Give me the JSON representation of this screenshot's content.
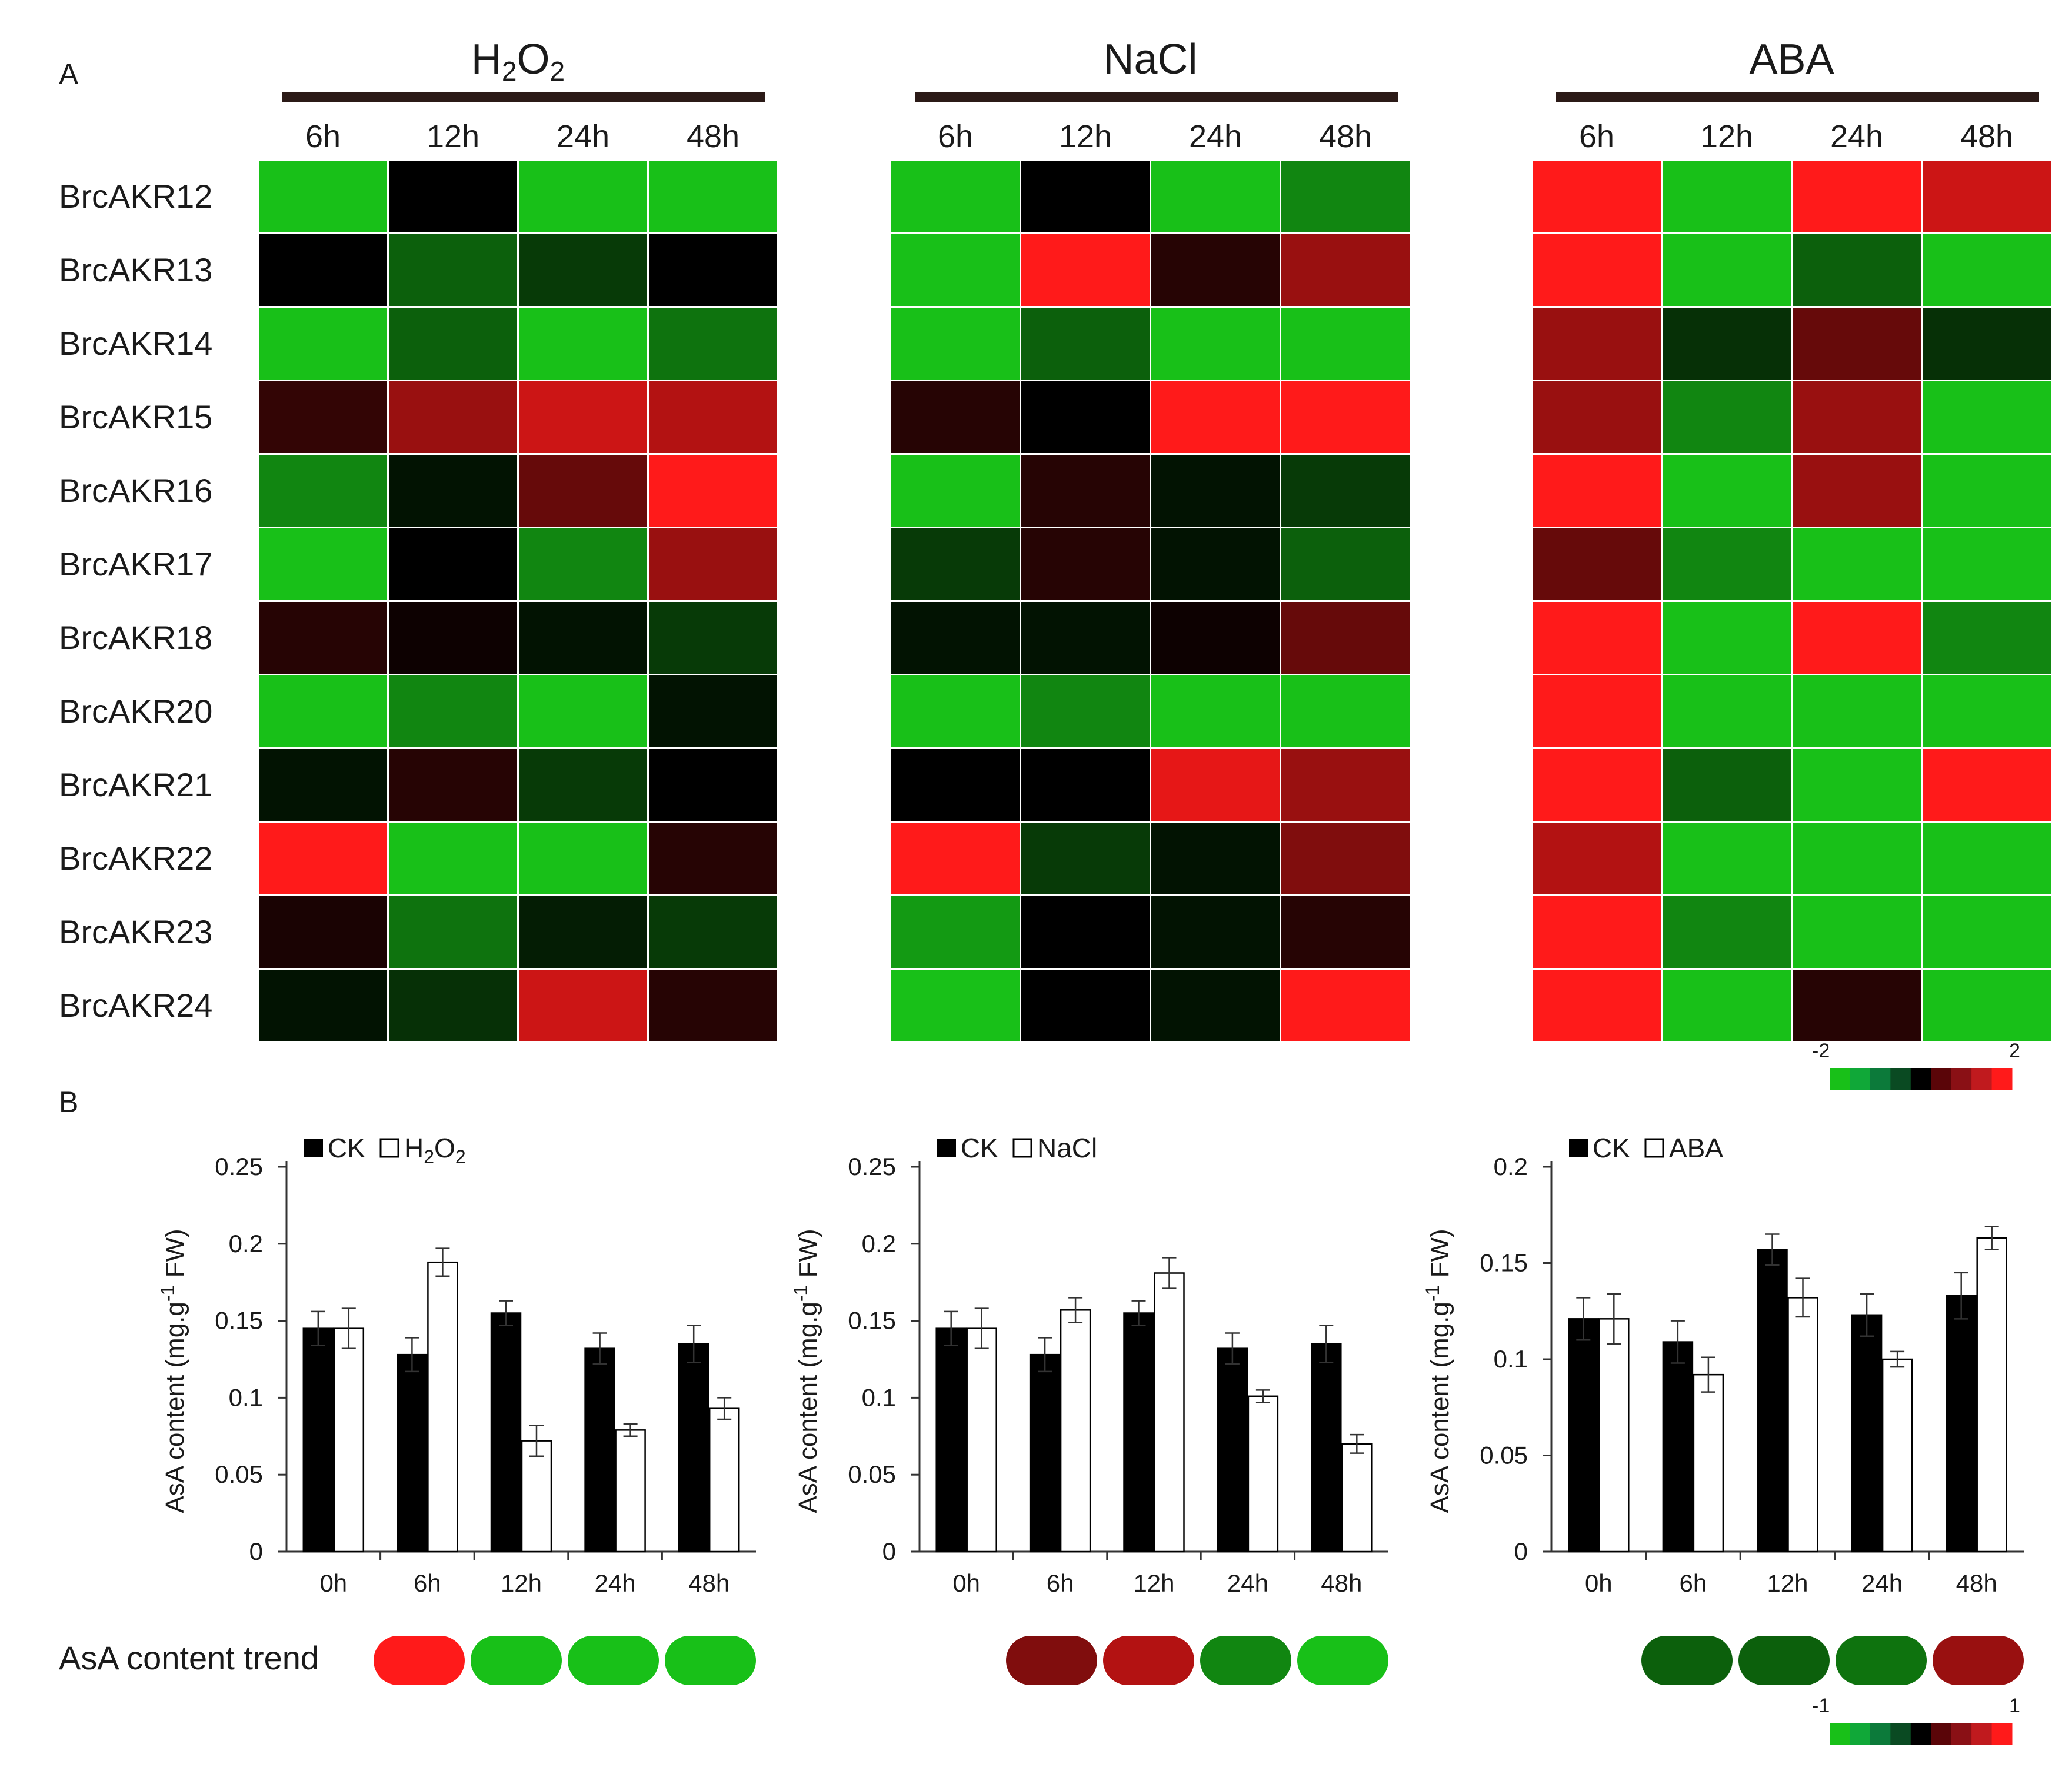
{
  "panel_labels": {
    "a": "A",
    "b": "B"
  },
  "heatmap": {
    "row_labels": [
      "BrcAKR12",
      "BrcAKR13",
      "BrcAKR14",
      "BrcAKR15",
      "BrcAKR16",
      "BrcAKR17",
      "BrcAKR18",
      "BrcAKR20",
      "BrcAKR21",
      "BrcAKR22",
      "BrcAKR23",
      "BrcAKR24"
    ],
    "col_labels": [
      "6h",
      "12h",
      "24h",
      "48h"
    ],
    "legend": {
      "min_label": "-2",
      "max_label": "2",
      "colors": [
        "#18c018",
        "#10a838",
        "#0c7a3a",
        "#0a4a22",
        "#000000",
        "#5a0508",
        "#8a1015",
        "#c01a1e",
        "#ff1a1a"
      ]
    }
  },
  "trend": {
    "label": "AsA content trend",
    "legend": {
      "min_label": "-1",
      "max_label": "1"
    }
  },
  "colors": {
    "ck_bar": "#000000",
    "treat_bar": "#ffffff",
    "axis": "#333333",
    "title_bar": "#2b1a17"
  },
  "chart_data": [
    {
      "type": "heatmap",
      "title": "H2O2",
      "title_main": "H",
      "title_sub1": "2",
      "title_mid": "O",
      "title_sub2": "2",
      "rows": [
        "BrcAKR12",
        "BrcAKR13",
        "BrcAKR14",
        "BrcAKR15",
        "BrcAKR16",
        "BrcAKR17",
        "BrcAKR18",
        "BrcAKR20",
        "BrcAKR21",
        "BrcAKR22",
        "BrcAKR23",
        "BrcAKR24"
      ],
      "columns": [
        "6h",
        "12h",
        "24h",
        "48h"
      ],
      "value_range": [
        -2,
        2
      ],
      "values": [
        [
          -2,
          0,
          -2,
          -2
        ],
        [
          0,
          -1,
          -0.6,
          0
        ],
        [
          -2,
          -1,
          -2,
          -1.2
        ],
        [
          0.4,
          1.2,
          1.6,
          1.4
        ],
        [
          -1.4,
          -0.2,
          0.8,
          2
        ],
        [
          -2,
          0,
          -1.4,
          1.2
        ],
        [
          0.3,
          0.1,
          -0.2,
          -0.6
        ],
        [
          -2,
          -1.4,
          -2,
          -0.2
        ],
        [
          -0.2,
          0.3,
          -0.6,
          0
        ],
        [
          2,
          -2,
          -2,
          0.3
        ],
        [
          0.2,
          -1.2,
          -0.3,
          -0.6
        ],
        [
          -0.2,
          -0.5,
          1.6,
          0.3
        ]
      ]
    },
    {
      "type": "heatmap",
      "title": "NaCl",
      "rows": [
        "BrcAKR12",
        "BrcAKR13",
        "BrcAKR14",
        "BrcAKR15",
        "BrcAKR16",
        "BrcAKR17",
        "BrcAKR18",
        "BrcAKR20",
        "BrcAKR21",
        "BrcAKR22",
        "BrcAKR23",
        "BrcAKR24"
      ],
      "columns": [
        "6h",
        "12h",
        "24h",
        "48h"
      ],
      "value_range": [
        -2,
        2
      ],
      "values": [
        [
          -2,
          0,
          -2,
          -1.4
        ],
        [
          -2,
          2,
          0.3,
          1.2
        ],
        [
          -2,
          -1,
          -2,
          -2
        ],
        [
          0.3,
          0,
          2,
          2
        ],
        [
          -2,
          0.3,
          -0.2,
          -0.6
        ],
        [
          -0.6,
          0.3,
          -0.2,
          -1
        ],
        [
          -0.2,
          -0.2,
          0.1,
          0.8
        ],
        [
          -2,
          -1.4,
          -2,
          -2
        ],
        [
          0,
          0,
          1.8,
          1.2
        ],
        [
          2,
          -0.6,
          -0.2,
          1
        ],
        [
          -1.6,
          0,
          -0.2,
          0.3
        ],
        [
          -2,
          0,
          -0.2,
          2
        ]
      ]
    },
    {
      "type": "heatmap",
      "title": "ABA",
      "rows": [
        "BrcAKR12",
        "BrcAKR13",
        "BrcAKR14",
        "BrcAKR15",
        "BrcAKR16",
        "BrcAKR17",
        "BrcAKR18",
        "BrcAKR20",
        "BrcAKR21",
        "BrcAKR22",
        "BrcAKR23",
        "BrcAKR24"
      ],
      "columns": [
        "6h",
        "12h",
        "24h",
        "48h"
      ],
      "value_range": [
        -2,
        2
      ],
      "values": [
        [
          2,
          -2,
          2,
          1.6
        ],
        [
          2,
          -2,
          -1,
          -2
        ],
        [
          1.2,
          -0.5,
          0.8,
          -0.5
        ],
        [
          1.2,
          -1.4,
          1.2,
          -2
        ],
        [
          2,
          -2,
          1.2,
          -2
        ],
        [
          0.8,
          -1.4,
          -2,
          -2
        ],
        [
          2,
          -2,
          2,
          -1.4
        ],
        [
          2,
          -2,
          -2,
          -2
        ],
        [
          2,
          -1,
          -2,
          2
        ],
        [
          1.4,
          -2,
          -2,
          -2
        ],
        [
          2,
          -1.4,
          -2,
          -2
        ],
        [
          2,
          -2,
          0.3,
          -2
        ]
      ]
    },
    {
      "type": "bar",
      "title": "H2O2",
      "ylabel_pre": "AsA content (mg.g",
      "ylabel_sup": "-1",
      "ylabel_post": " FW)",
      "categories": [
        "0h",
        "6h",
        "12h",
        "24h",
        "48h"
      ],
      "ylim": [
        0,
        0.25
      ],
      "yticks": [
        0,
        0.05,
        0.1,
        0.15,
        0.2,
        0.25
      ],
      "ytick_labels": [
        "0",
        "0.05",
        "0.1",
        "0.15",
        "0.2",
        "0.25"
      ],
      "legend": {
        "ck": "CK",
        "treat_main": "H",
        "treat_sub1": "2",
        "treat_mid": "O",
        "treat_sub2": "2"
      },
      "series": [
        {
          "name": "CK",
          "values": [
            0.145,
            0.128,
            0.155,
            0.132,
            0.135
          ],
          "errors": [
            0.011,
            0.011,
            0.008,
            0.01,
            0.012
          ]
        },
        {
          "name": "H2O2",
          "values": [
            0.145,
            0.188,
            0.072,
            0.079,
            0.093
          ],
          "errors": [
            0.013,
            0.009,
            0.01,
            0.004,
            0.007
          ]
        }
      ],
      "trend_values": [
        1,
        -1,
        -1,
        -1
      ]
    },
    {
      "type": "bar",
      "title": "NaCl",
      "ylabel_pre": "AsA content (mg.g",
      "ylabel_sup": "-1",
      "ylabel_post": " FW)",
      "categories": [
        "0h",
        "6h",
        "12h",
        "24h",
        "48h"
      ],
      "ylim": [
        0,
        0.25
      ],
      "yticks": [
        0,
        0.05,
        0.1,
        0.15,
        0.2,
        0.25
      ],
      "ytick_labels": [
        "0",
        "0.05",
        "0.1",
        "0.15",
        "0.2",
        "0.25"
      ],
      "legend": {
        "ck": "CK",
        "treat": "NaCl"
      },
      "series": [
        {
          "name": "CK",
          "values": [
            0.145,
            0.128,
            0.155,
            0.132,
            0.135
          ],
          "errors": [
            0.011,
            0.011,
            0.008,
            0.01,
            0.012
          ]
        },
        {
          "name": "NaCl",
          "values": [
            0.145,
            0.157,
            0.181,
            0.101,
            0.07
          ],
          "errors": [
            0.013,
            0.008,
            0.01,
            0.004,
            0.006
          ]
        }
      ],
      "trend_values": [
        0.5,
        0.7,
        -0.7,
        -1
      ]
    },
    {
      "type": "bar",
      "title": "ABA",
      "ylabel_pre": "AsA content (mg.g",
      "ylabel_sup": "-1",
      "ylabel_post": " FW)",
      "categories": [
        "0h",
        "6h",
        "12h",
        "24h",
        "48h"
      ],
      "ylim": [
        0,
        0.2
      ],
      "yticks": [
        0,
        0.05,
        0.1,
        0.15,
        0.2
      ],
      "ytick_labels": [
        "0",
        "0.05",
        "0.1",
        "0.15",
        "0.2"
      ],
      "legend": {
        "ck": "CK",
        "treat": "ABA"
      },
      "series": [
        {
          "name": "CK",
          "values": [
            0.121,
            0.109,
            0.157,
            0.123,
            0.133
          ],
          "errors": [
            0.011,
            0.011,
            0.008,
            0.011,
            0.012
          ]
        },
        {
          "name": "ABA",
          "values": [
            0.121,
            0.092,
            0.132,
            0.1,
            0.163
          ],
          "errors": [
            0.013,
            0.009,
            0.01,
            0.004,
            0.006
          ]
        }
      ],
      "trend_values": [
        -0.5,
        -0.5,
        -0.6,
        0.6
      ]
    }
  ]
}
